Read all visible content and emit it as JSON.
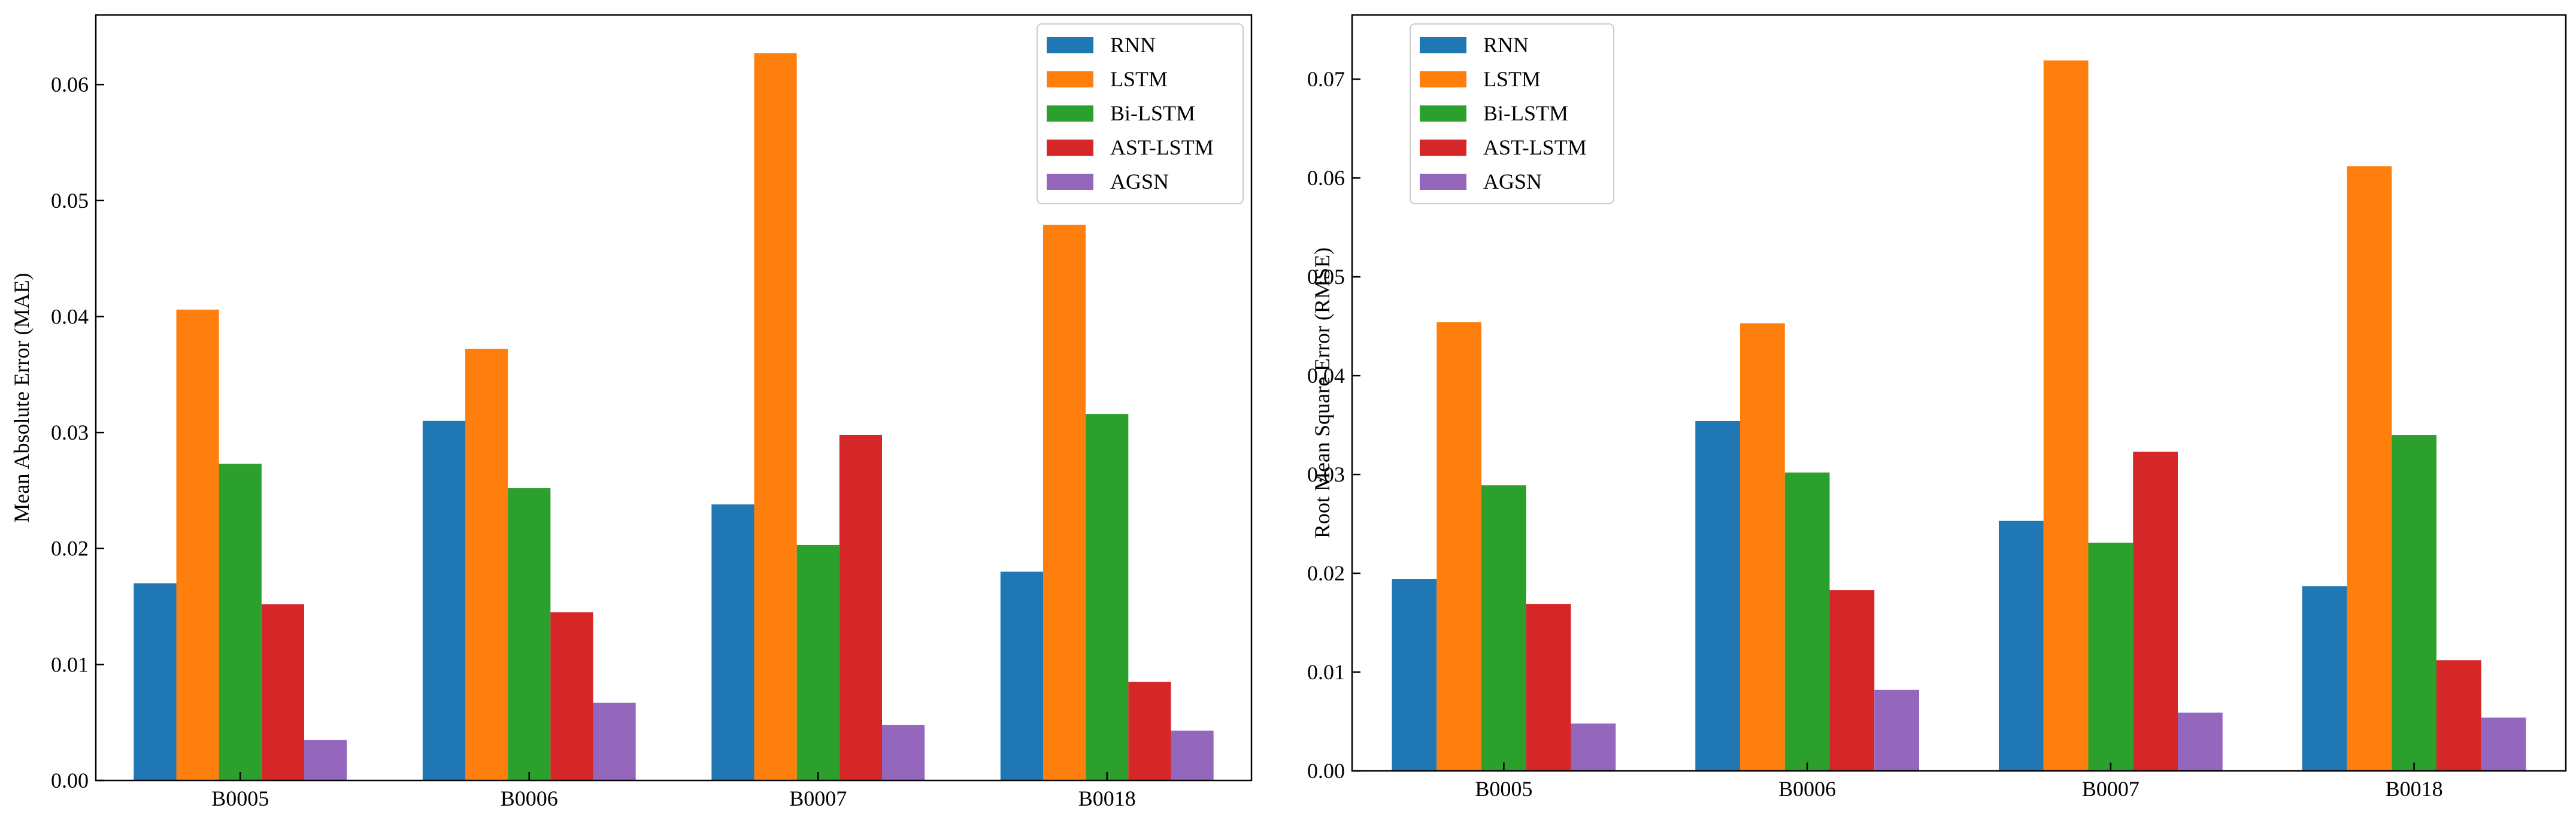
{
  "chart_data": [
    {
      "type": "bar",
      "title": "",
      "xlabel": "",
      "ylabel": "Mean Absolute Error (MAE)",
      "categories": [
        "B0005",
        "B0006",
        "B0007",
        "B0018"
      ],
      "ylim": [
        0,
        0.066
      ],
      "yticks": [
        0.0,
        0.01,
        0.02,
        0.03,
        0.04,
        0.05,
        0.06
      ],
      "ytick_labels": [
        "0.00",
        "0.01",
        "0.02",
        "0.03",
        "0.04",
        "0.05",
        "0.06"
      ],
      "legend_position": "top-right",
      "series": [
        {
          "name": "RNN",
          "color": "#1f77b4",
          "values": [
            0.017,
            0.031,
            0.0238,
            0.018
          ]
        },
        {
          "name": "LSTM",
          "color": "#ff7f0e",
          "values": [
            0.0406,
            0.0372,
            0.0627,
            0.0479
          ]
        },
        {
          "name": "Bi-LSTM",
          "color": "#2ca02c",
          "values": [
            0.0273,
            0.0252,
            0.0203,
            0.0316
          ]
        },
        {
          "name": "AST-LSTM",
          "color": "#d62728",
          "values": [
            0.0152,
            0.0145,
            0.0298,
            0.0085
          ]
        },
        {
          "name": "AGSN",
          "color": "#9467bd",
          "values": [
            0.0035,
            0.0067,
            0.0048,
            0.0043
          ]
        }
      ]
    },
    {
      "type": "bar",
      "title": "",
      "xlabel": "",
      "ylabel": "Root Mean Square Error (RMSE)",
      "categories": [
        "B0005",
        "B0006",
        "B0007",
        "B0018"
      ],
      "ylim": [
        0,
        0.0765
      ],
      "yticks": [
        0.0,
        0.01,
        0.02,
        0.03,
        0.04,
        0.05,
        0.06,
        0.07
      ],
      "ytick_labels": [
        "0.00",
        "0.01",
        "0.02",
        "0.03",
        "0.04",
        "0.05",
        "0.06",
        "0.07"
      ],
      "legend_position": "top-left",
      "series": [
        {
          "name": "RNN",
          "color": "#1f77b4",
          "values": [
            0.0194,
            0.0354,
            0.0253,
            0.0187
          ]
        },
        {
          "name": "LSTM",
          "color": "#ff7f0e",
          "values": [
            0.0454,
            0.0453,
            0.0719,
            0.0612
          ]
        },
        {
          "name": "Bi-LSTM",
          "color": "#2ca02c",
          "values": [
            0.0289,
            0.0302,
            0.0231,
            0.034
          ]
        },
        {
          "name": "AST-LSTM",
          "color": "#d62728",
          "values": [
            0.0169,
            0.0183,
            0.0323,
            0.0112
          ]
        },
        {
          "name": "AGSN",
          "color": "#9467bd",
          "values": [
            0.0048,
            0.0082,
            0.0059,
            0.0054
          ]
        }
      ]
    }
  ]
}
